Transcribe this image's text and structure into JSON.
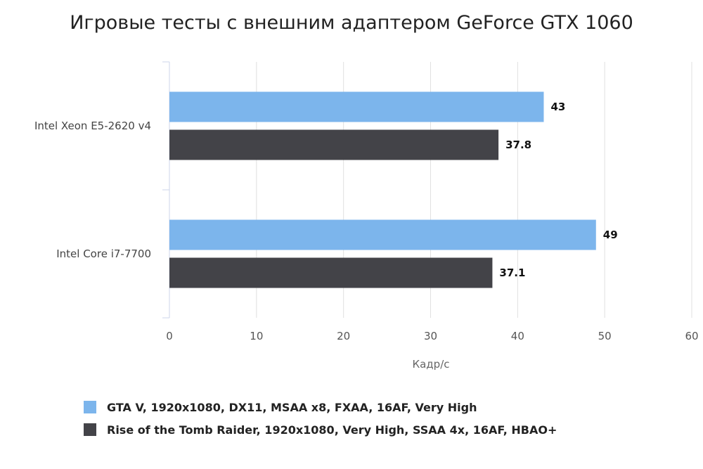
{
  "chart_data": {
    "type": "bar",
    "orientation": "horizontal",
    "title": "Игровые тесты с внешним адаптером GeForce GTX 1060",
    "categories": [
      "Intel Xeon E5-2620 v4",
      "Intel Core i7-7700"
    ],
    "series": [
      {
        "name": "GTA V, 1920x1080, DX11, MSAA x8, FXAA, 16AF, Very High",
        "color": "#7cb5ec",
        "values": [
          43,
          49
        ]
      },
      {
        "name": "Rise of the Tomb Raider, 1920x1080, Very High, SSAA 4x, 16AF, HBAO+",
        "color": "#434348",
        "values": [
          37.8,
          37.1
        ]
      }
    ],
    "data_labels": [
      [
        "43",
        "37.8"
      ],
      [
        "49",
        "37.1"
      ]
    ],
    "xlabel": "Кадр/с",
    "ylabel": "",
    "xlim": [
      0,
      60
    ],
    "xticks": [
      0,
      10,
      20,
      30,
      40,
      50,
      60
    ],
    "xtick_labels": [
      "0",
      "10",
      "20",
      "30",
      "40",
      "50",
      "60"
    ],
    "grid": true,
    "legend_position": "bottom-left"
  }
}
